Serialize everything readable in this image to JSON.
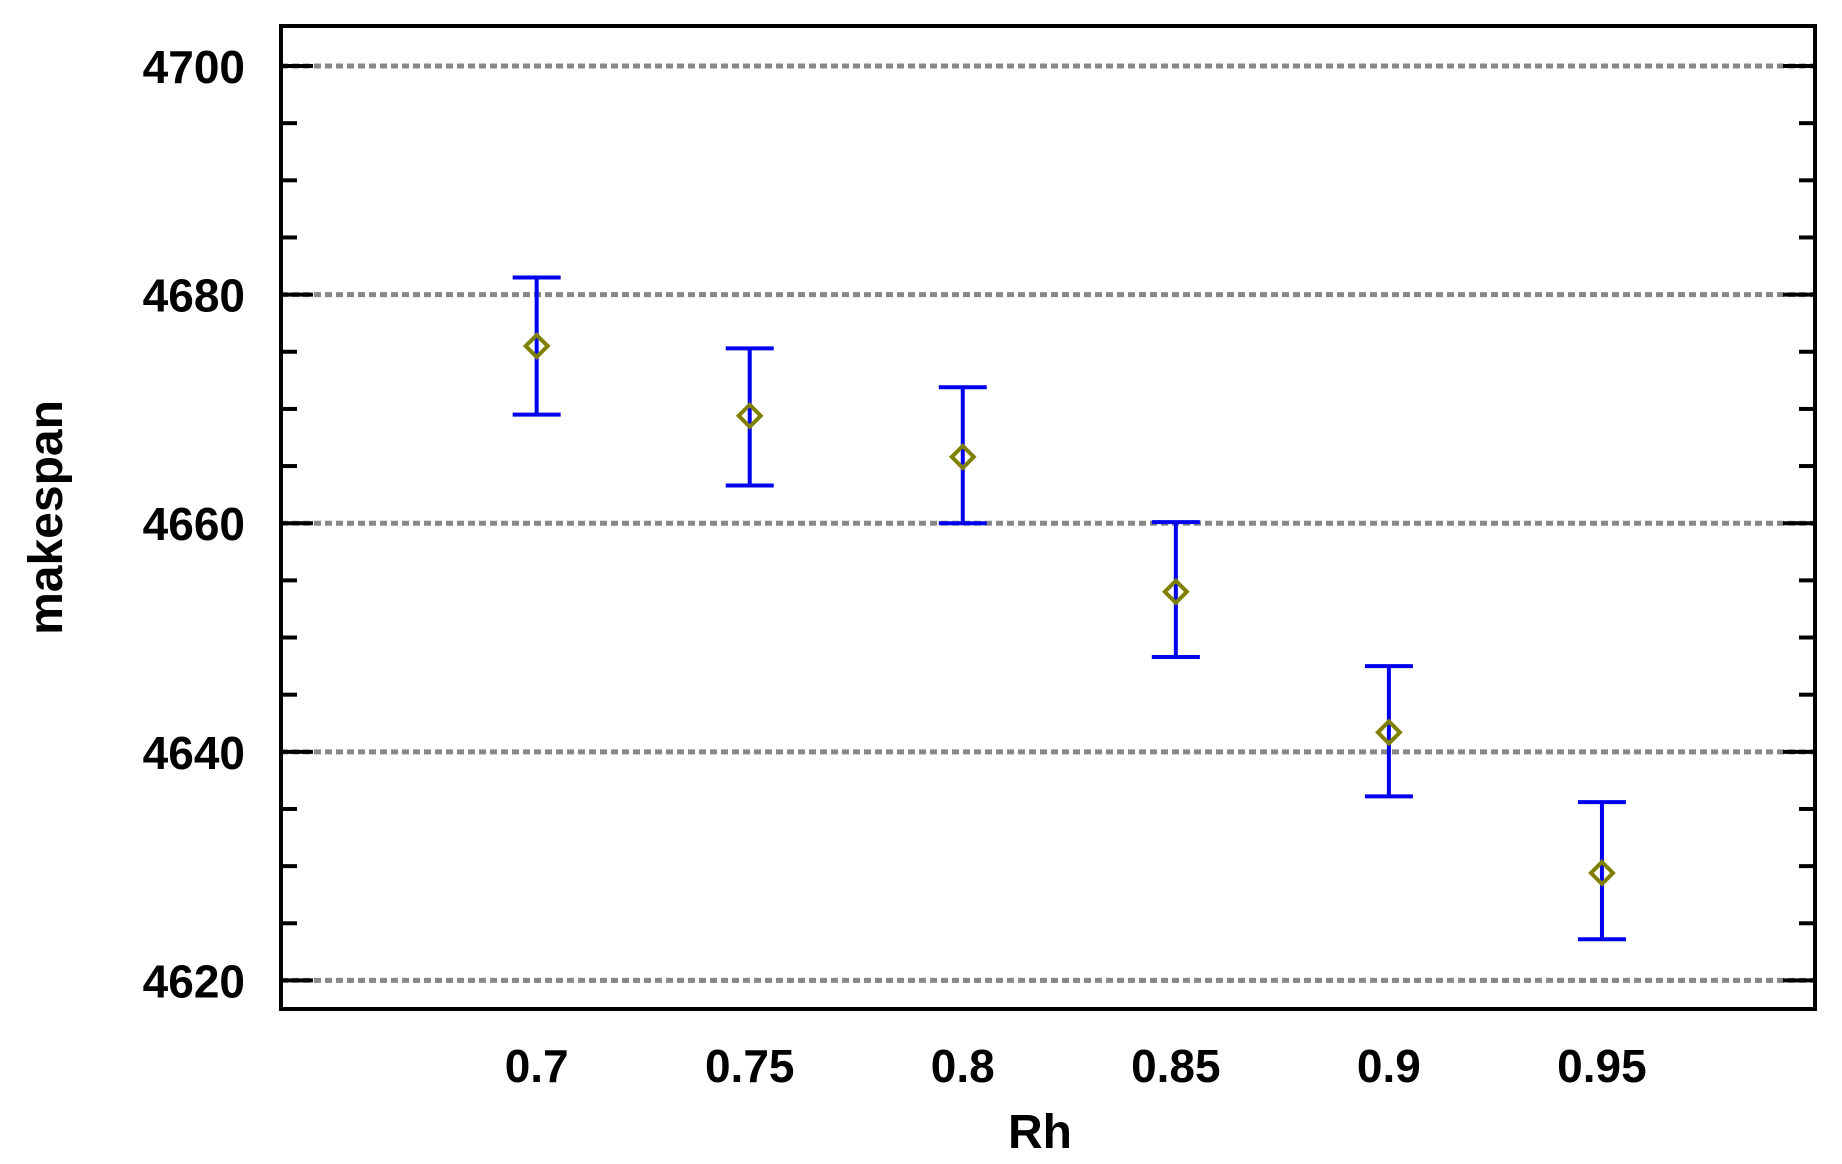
{
  "chart_data": {
    "type": "scatter",
    "xlabel": "Rh",
    "ylabel": "makespan",
    "xlim": [
      0.64,
      1.0
    ],
    "ylim": [
      4617.5,
      4703.5
    ],
    "x_ticks": [
      "0.7",
      "0.75",
      "0.8",
      "0.85",
      "0.9",
      "0.95"
    ],
    "y_ticks": [
      "4620",
      "4640",
      "4660",
      "4680",
      "4700"
    ],
    "grid": true,
    "colors": {
      "errorbar": "#0000ee",
      "marker": "#808000",
      "grid": "#888888"
    },
    "points": [
      {
        "x": 0.7,
        "y": 4675.5,
        "low": 4669.5,
        "high": 4681.5
      },
      {
        "x": 0.75,
        "y": 4669.4,
        "low": 4663.3,
        "high": 4675.3
      },
      {
        "x": 0.8,
        "y": 4665.8,
        "low": 4660.0,
        "high": 4671.9
      },
      {
        "x": 0.85,
        "y": 4654.0,
        "low": 4648.3,
        "high": 4660.1
      },
      {
        "x": 0.9,
        "y": 4641.7,
        "low": 4636.1,
        "high": 4647.5
      },
      {
        "x": 0.95,
        "y": 4629.4,
        "low": 4623.6,
        "high": 4635.6
      }
    ]
  }
}
